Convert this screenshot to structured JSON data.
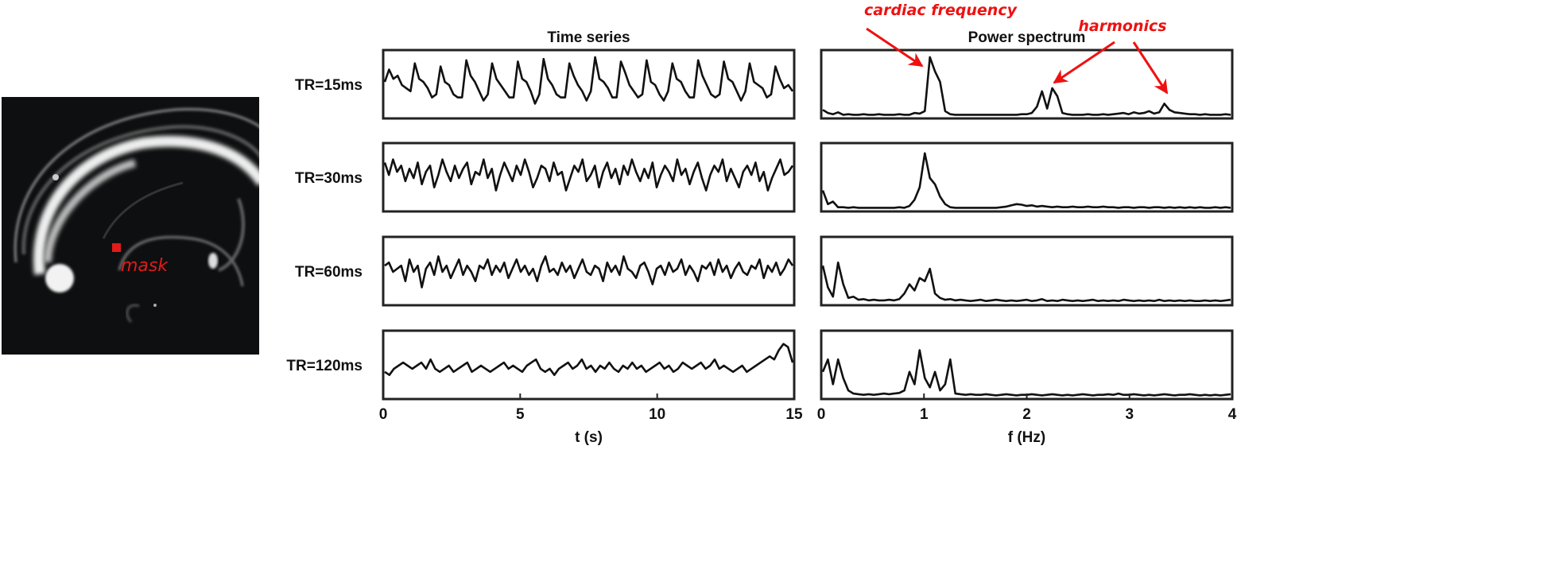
{
  "figure": {
    "mask_label": "mask",
    "annotations": {
      "cardiac": "cardiac frequency",
      "harmonics": "harmonics"
    },
    "colors": {
      "annotation": "#ee1111",
      "trace": "#111111",
      "mask": "#e21a1a"
    }
  },
  "chart_data": [
    {
      "type": "line",
      "title": "Time series",
      "xlabel": "t (s)",
      "ylabel": "",
      "xlim": [
        0,
        15
      ],
      "ylim": [
        0,
        1
      ],
      "x_ticks": [
        "0",
        "5",
        "10",
        "15"
      ],
      "x_tick_values": [
        0,
        5,
        10,
        15
      ],
      "series": [
        {
          "name": "TR=15ms",
          "values": [
            0.55,
            0.75,
            0.6,
            0.65,
            0.5,
            0.45,
            0.4,
            0.85,
            0.6,
            0.55,
            0.45,
            0.3,
            0.35,
            0.8,
            0.55,
            0.5,
            0.35,
            0.3,
            0.3,
            0.9,
            0.65,
            0.55,
            0.4,
            0.25,
            0.35,
            0.85,
            0.6,
            0.5,
            0.4,
            0.3,
            0.3,
            0.88,
            0.6,
            0.55,
            0.4,
            0.2,
            0.35,
            0.92,
            0.6,
            0.5,
            0.35,
            0.3,
            0.3,
            0.85,
            0.65,
            0.5,
            0.4,
            0.25,
            0.4,
            0.95,
            0.6,
            0.55,
            0.45,
            0.3,
            0.3,
            0.88,
            0.7,
            0.5,
            0.4,
            0.3,
            0.35,
            0.9,
            0.55,
            0.5,
            0.35,
            0.25,
            0.4,
            0.85,
            0.6,
            0.55,
            0.4,
            0.3,
            0.3,
            0.9,
            0.65,
            0.5,
            0.35,
            0.3,
            0.35,
            0.88,
            0.6,
            0.55,
            0.4,
            0.25,
            0.4,
            0.85,
            0.55,
            0.5,
            0.45,
            0.3,
            0.35,
            0.8,
            0.6,
            0.45,
            0.5,
            0.4
          ]
        },
        {
          "name": "TR=30ms",
          "values": [
            0.75,
            0.55,
            0.8,
            0.6,
            0.7,
            0.45,
            0.65,
            0.5,
            0.75,
            0.4,
            0.6,
            0.7,
            0.35,
            0.55,
            0.8,
            0.6,
            0.45,
            0.7,
            0.5,
            0.65,
            0.75,
            0.4,
            0.6,
            0.55,
            0.8,
            0.5,
            0.65,
            0.3,
            0.55,
            0.75,
            0.6,
            0.45,
            0.7,
            0.55,
            0.8,
            0.6,
            0.35,
            0.5,
            0.7,
            0.65,
            0.45,
            0.75,
            0.55,
            0.6,
            0.3,
            0.5,
            0.7,
            0.6,
            0.8,
            0.45,
            0.55,
            0.7,
            0.35,
            0.6,
            0.75,
            0.5,
            0.65,
            0.4,
            0.7,
            0.55,
            0.8,
            0.6,
            0.45,
            0.65,
            0.5,
            0.75,
            0.35,
            0.55,
            0.7,
            0.6,
            0.45,
            0.8,
            0.55,
            0.65,
            0.4,
            0.6,
            0.75,
            0.5,
            0.3,
            0.55,
            0.7,
            0.6,
            0.8,
            0.45,
            0.65,
            0.5,
            0.35,
            0.6,
            0.7,
            0.55,
            0.75,
            0.45,
            0.6,
            0.3,
            0.5,
            0.65,
            0.8,
            0.55,
            0.6,
            0.7
          ]
        },
        {
          "name": "TR=60ms",
          "values": [
            0.6,
            0.65,
            0.5,
            0.55,
            0.6,
            0.35,
            0.7,
            0.5,
            0.6,
            0.25,
            0.55,
            0.65,
            0.45,
            0.75,
            0.5,
            0.6,
            0.4,
            0.55,
            0.7,
            0.45,
            0.6,
            0.5,
            0.35,
            0.6,
            0.55,
            0.7,
            0.45,
            0.6,
            0.5,
            0.65,
            0.4,
            0.55,
            0.7,
            0.5,
            0.6,
            0.45,
            0.55,
            0.35,
            0.6,
            0.75,
            0.5,
            0.55,
            0.45,
            0.65,
            0.5,
            0.6,
            0.4,
            0.55,
            0.7,
            0.5,
            0.45,
            0.6,
            0.55,
            0.35,
            0.65,
            0.5,
            0.6,
            0.45,
            0.75,
            0.55,
            0.5,
            0.4,
            0.6,
            0.65,
            0.5,
            0.3,
            0.55,
            0.6,
            0.45,
            0.65,
            0.5,
            0.55,
            0.7,
            0.45,
            0.6,
            0.5,
            0.35,
            0.6,
            0.55,
            0.65,
            0.45,
            0.7,
            0.5,
            0.6,
            0.4,
            0.55,
            0.65,
            0.5,
            0.45,
            0.6,
            0.55,
            0.7,
            0.4,
            0.6,
            0.5,
            0.65,
            0.45,
            0.55,
            0.7,
            0.6
          ]
        },
        {
          "name": "TR=120ms",
          "values": [
            0.4,
            0.35,
            0.45,
            0.5,
            0.55,
            0.5,
            0.45,
            0.5,
            0.55,
            0.45,
            0.6,
            0.45,
            0.4,
            0.45,
            0.5,
            0.4,
            0.45,
            0.5,
            0.55,
            0.4,
            0.45,
            0.5,
            0.45,
            0.4,
            0.45,
            0.5,
            0.55,
            0.45,
            0.5,
            0.45,
            0.4,
            0.5,
            0.55,
            0.6,
            0.45,
            0.4,
            0.45,
            0.35,
            0.45,
            0.5,
            0.55,
            0.45,
            0.5,
            0.6,
            0.45,
            0.5,
            0.4,
            0.5,
            0.45,
            0.55,
            0.45,
            0.4,
            0.5,
            0.45,
            0.55,
            0.45,
            0.5,
            0.4,
            0.45,
            0.5,
            0.55,
            0.45,
            0.5,
            0.4,
            0.45,
            0.55,
            0.5,
            0.45,
            0.5,
            0.55,
            0.45,
            0.5,
            0.6,
            0.45,
            0.5,
            0.45,
            0.4,
            0.45,
            0.5,
            0.4,
            0.45,
            0.5,
            0.55,
            0.6,
            0.65,
            0.6,
            0.75,
            0.85,
            0.8,
            0.55
          ]
        }
      ]
    },
    {
      "type": "line",
      "title": "Power spectrum",
      "xlabel": "f (Hz)",
      "ylabel": "",
      "xlim": [
        0,
        4
      ],
      "ylim": [
        0,
        1
      ],
      "x_ticks": [
        "0",
        "1",
        "2",
        "3",
        "4"
      ],
      "x_tick_values": [
        0,
        1,
        2,
        3,
        4
      ],
      "series": [
        {
          "name": "TR=15ms",
          "values": [
            0.1,
            0.05,
            0.03,
            0.06,
            0.02,
            0.03,
            0.02,
            0.02,
            0.03,
            0.02,
            0.02,
            0.03,
            0.02,
            0.02,
            0.02,
            0.03,
            0.02,
            0.02,
            0.05,
            0.04,
            0.08,
            0.95,
            0.72,
            0.55,
            0.08,
            0.03,
            0.02,
            0.02,
            0.02,
            0.02,
            0.02,
            0.02,
            0.02,
            0.02,
            0.02,
            0.02,
            0.02,
            0.02,
            0.02,
            0.03,
            0.03,
            0.05,
            0.15,
            0.4,
            0.12,
            0.45,
            0.32,
            0.05,
            0.03,
            0.02,
            0.02,
            0.02,
            0.03,
            0.02,
            0.02,
            0.03,
            0.02,
            0.03,
            0.04,
            0.05,
            0.03,
            0.06,
            0.04,
            0.05,
            0.08,
            0.04,
            0.06,
            0.2,
            0.1,
            0.06,
            0.05,
            0.04,
            0.03,
            0.03,
            0.02,
            0.03,
            0.02,
            0.02,
            0.02,
            0.03,
            0.02
          ]
        },
        {
          "name": "TR=30ms",
          "values": [
            0.3,
            0.08,
            0.12,
            0.03,
            0.03,
            0.02,
            0.03,
            0.02,
            0.02,
            0.02,
            0.02,
            0.02,
            0.02,
            0.02,
            0.02,
            0.03,
            0.02,
            0.05,
            0.15,
            0.35,
            0.9,
            0.5,
            0.4,
            0.2,
            0.08,
            0.03,
            0.02,
            0.02,
            0.02,
            0.02,
            0.02,
            0.02,
            0.02,
            0.02,
            0.02,
            0.03,
            0.04,
            0.06,
            0.08,
            0.07,
            0.05,
            0.06,
            0.04,
            0.05,
            0.04,
            0.03,
            0.04,
            0.03,
            0.03,
            0.04,
            0.03,
            0.03,
            0.04,
            0.03,
            0.03,
            0.04,
            0.03,
            0.03,
            0.02,
            0.03,
            0.03,
            0.02,
            0.03,
            0.03,
            0.02,
            0.03,
            0.03,
            0.02,
            0.03,
            0.02,
            0.03,
            0.02,
            0.03,
            0.02,
            0.03,
            0.02,
            0.02,
            0.03,
            0.02,
            0.03,
            0.02
          ]
        },
        {
          "name": "TR=60ms",
          "values": [
            0.6,
            0.25,
            0.1,
            0.65,
            0.3,
            0.08,
            0.1,
            0.05,
            0.06,
            0.04,
            0.05,
            0.04,
            0.04,
            0.05,
            0.04,
            0.06,
            0.15,
            0.3,
            0.2,
            0.4,
            0.35,
            0.55,
            0.15,
            0.08,
            0.05,
            0.06,
            0.04,
            0.05,
            0.04,
            0.03,
            0.04,
            0.05,
            0.03,
            0.04,
            0.05,
            0.04,
            0.03,
            0.04,
            0.03,
            0.04,
            0.05,
            0.03,
            0.04,
            0.06,
            0.03,
            0.04,
            0.03,
            0.05,
            0.04,
            0.03,
            0.04,
            0.03,
            0.04,
            0.05,
            0.03,
            0.04,
            0.03,
            0.04,
            0.03,
            0.05,
            0.04,
            0.03,
            0.04,
            0.03,
            0.04,
            0.03,
            0.05,
            0.03,
            0.04,
            0.03,
            0.04,
            0.03,
            0.04,
            0.03,
            0.03,
            0.04,
            0.03,
            0.04,
            0.03,
            0.04,
            0.05
          ]
        },
        {
          "name": "TR=120ms",
          "values": [
            0.4,
            0.6,
            0.2,
            0.6,
            0.3,
            0.1,
            0.05,
            0.04,
            0.03,
            0.04,
            0.03,
            0.04,
            0.05,
            0.04,
            0.05,
            0.06,
            0.1,
            0.4,
            0.2,
            0.75,
            0.3,
            0.15,
            0.4,
            0.1,
            0.2,
            0.6,
            0.05,
            0.04,
            0.03,
            0.04,
            0.03,
            0.03,
            0.04,
            0.03,
            0.02,
            0.03,
            0.04,
            0.03,
            0.02,
            0.03,
            0.03,
            0.04,
            0.03,
            0.02,
            0.03,
            0.04,
            0.03,
            0.02,
            0.03,
            0.02,
            0.03,
            0.04,
            0.03,
            0.02,
            0.03,
            0.03,
            0.04,
            0.03,
            0.05,
            0.03,
            0.03,
            0.04,
            0.03,
            0.02,
            0.03,
            0.02,
            0.03,
            0.04,
            0.03,
            0.02,
            0.03,
            0.03,
            0.04,
            0.03,
            0.02,
            0.03,
            0.02,
            0.03,
            0.02,
            0.03,
            0.04
          ]
        }
      ]
    }
  ]
}
